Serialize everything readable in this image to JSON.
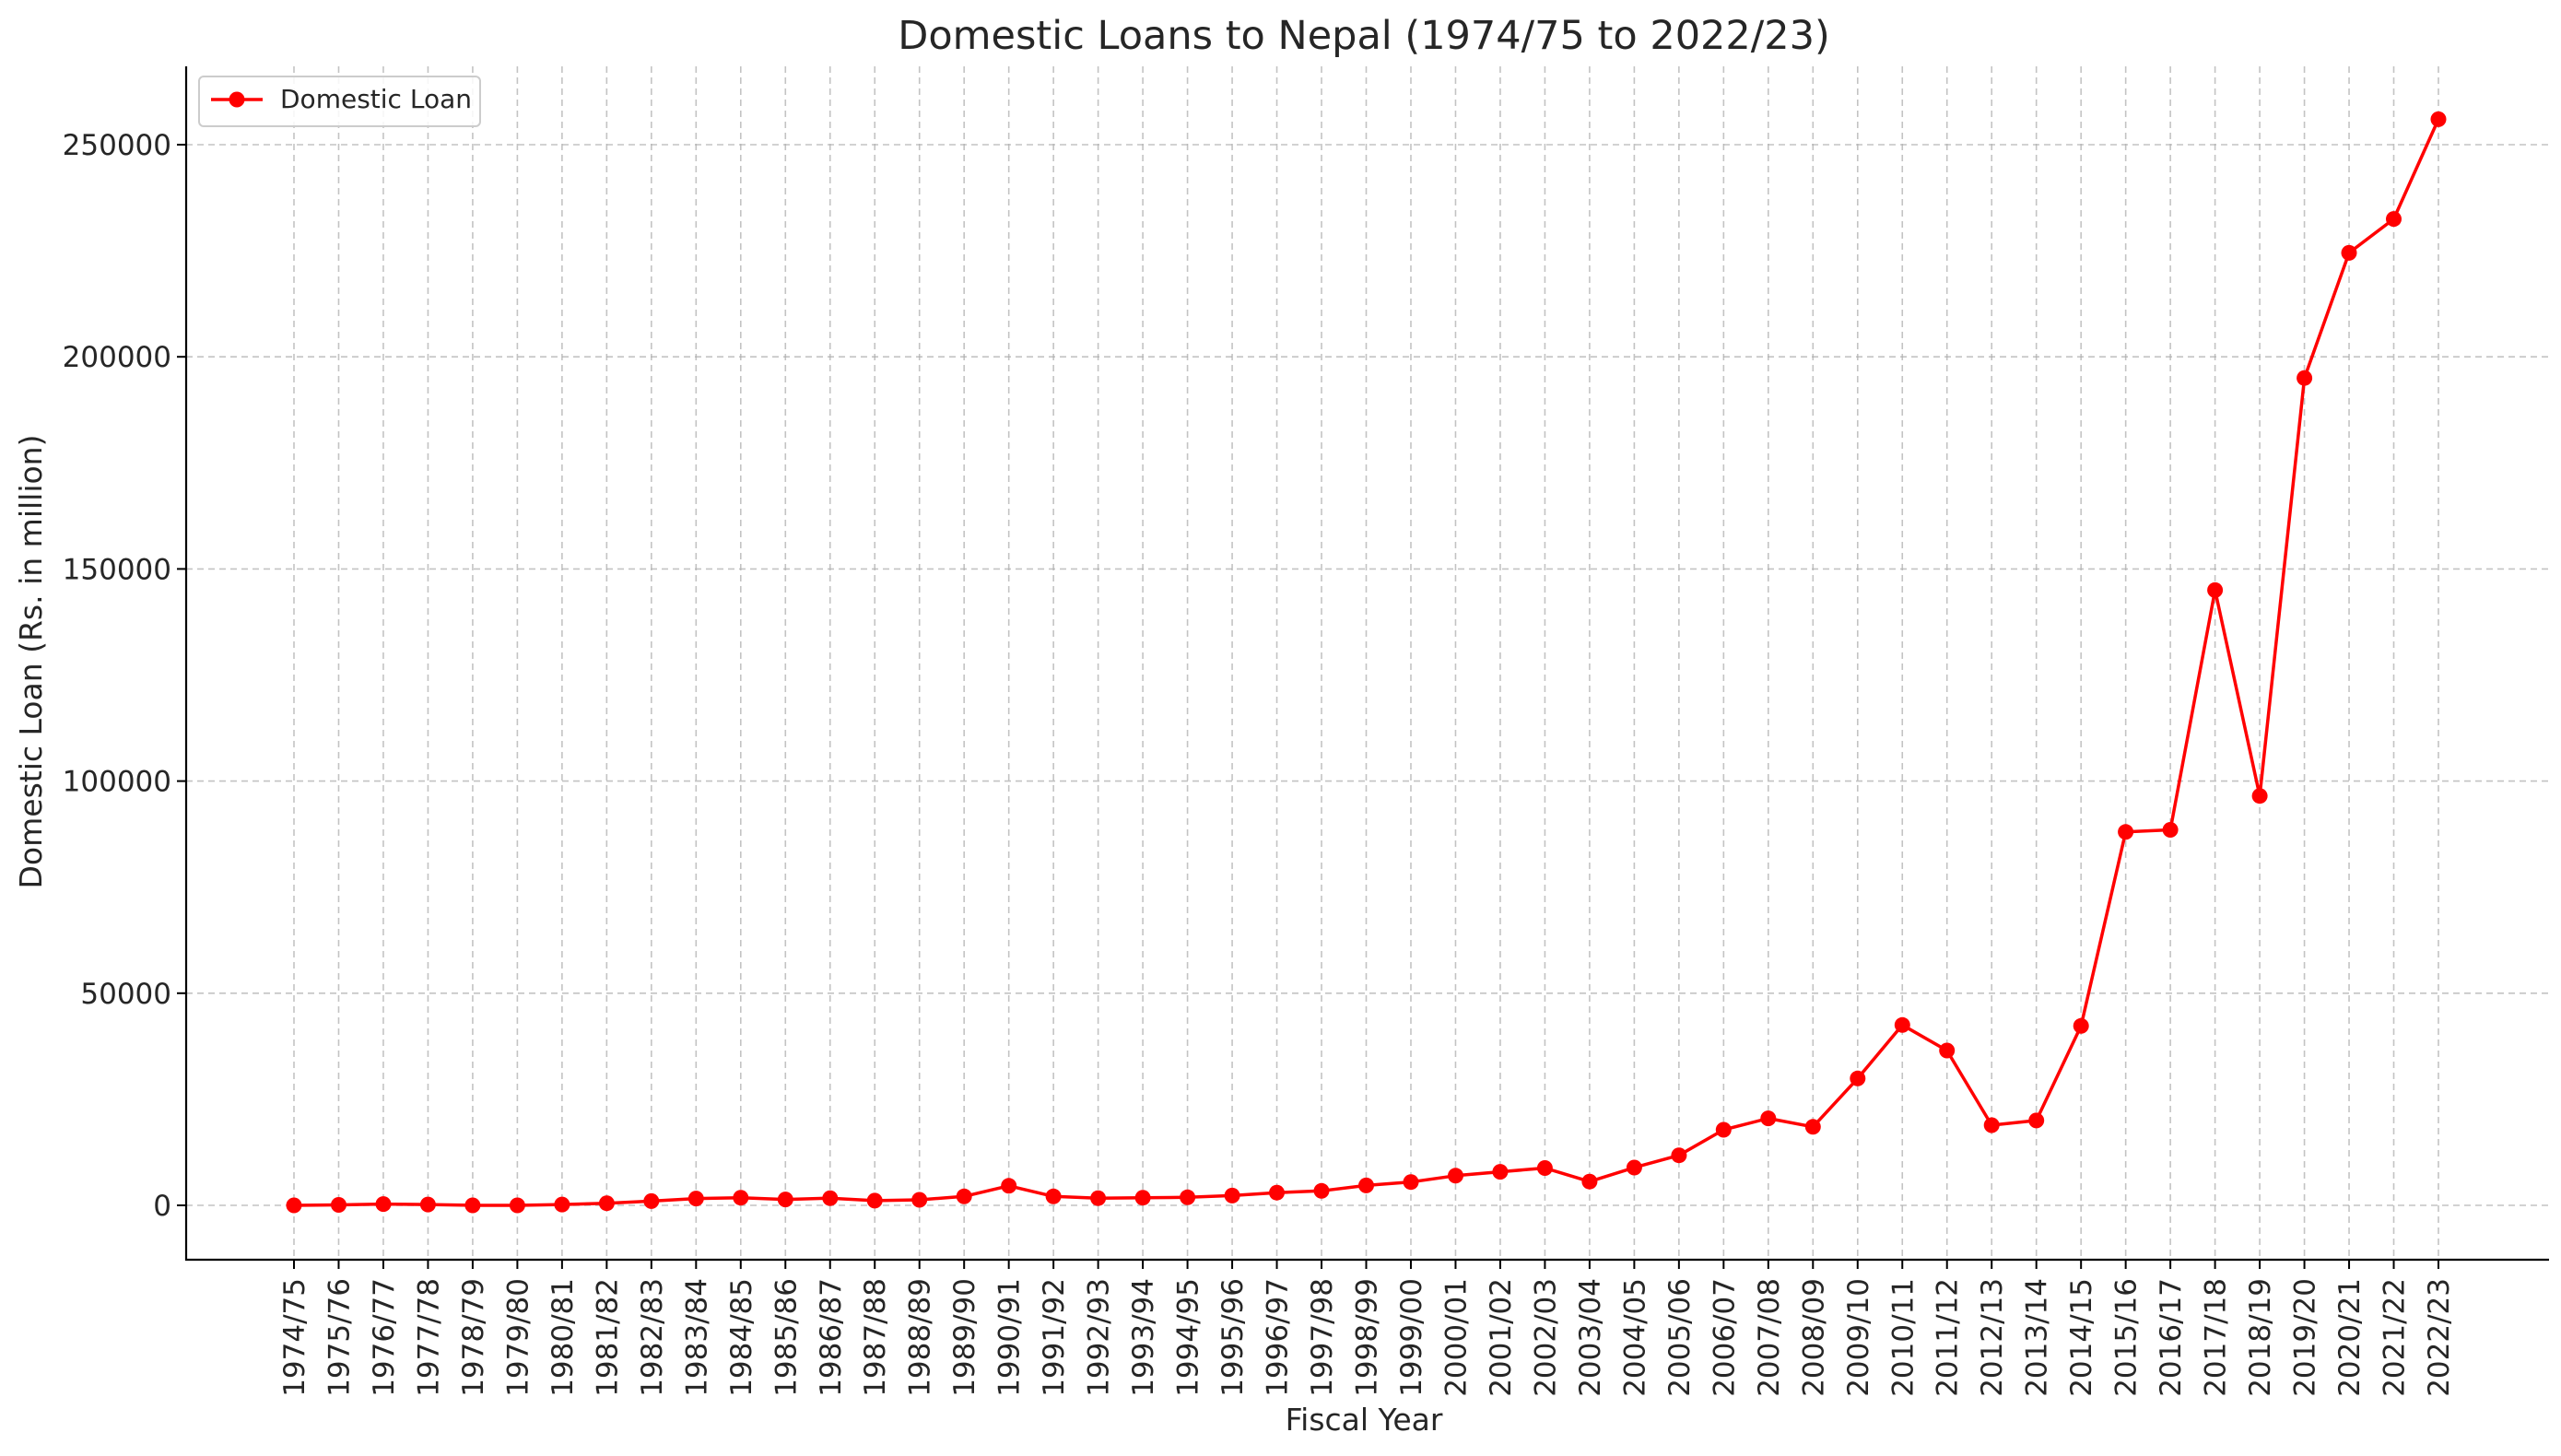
{
  "chart_data": {
    "type": "line",
    "title": "Domestic Loans to Nepal (1974/75 to 2022/23)",
    "xlabel": "Fiscal Year",
    "ylabel": "Domestic Loan (Rs. in million)",
    "ylim": [
      -12500,
      268000
    ],
    "yticks": [
      0,
      50000,
      100000,
      150000,
      200000,
      250000
    ],
    "grid": true,
    "legend_position": "top-left",
    "categories": [
      "1974/75",
      "1975/76",
      "1976/77",
      "1977/78",
      "1978/79",
      "1979/80",
      "1980/81",
      "1981/82",
      "1982/83",
      "1983/84",
      "1984/85",
      "1985/86",
      "1986/87",
      "1987/88",
      "1988/89",
      "1989/90",
      "1990/91",
      "1991/92",
      "1992/93",
      "1993/94",
      "1994/95",
      "1995/96",
      "1996/97",
      "1997/98",
      "1998/99",
      "1999/00",
      "2000/01",
      "2001/02",
      "2002/03",
      "2003/04",
      "2004/05",
      "2005/06",
      "2006/07",
      "2007/08",
      "2008/09",
      "2009/10",
      "2010/11",
      "2011/12",
      "2012/13",
      "2013/14",
      "2014/15",
      "2015/16",
      "2016/17",
      "2017/18",
      "2018/19",
      "2019/20",
      "2020/21",
      "2021/22",
      "2022/23"
    ],
    "series": [
      {
        "name": "Domestic Loan",
        "color": "#ff0000",
        "marker": "circle",
        "values": [
          0,
          100,
          300,
          200,
          0,
          0,
          200,
          500,
          1000,
          1600,
          1800,
          1400,
          1700,
          1100,
          1300,
          2100,
          4600,
          2100,
          1700,
          1800,
          1900,
          2300,
          3000,
          3400,
          4700,
          5500,
          7000,
          7900,
          8800,
          5600,
          8900,
          11800,
          17800,
          20500,
          18500,
          29900,
          42500,
          36500,
          18900,
          20000,
          42300,
          88000,
          88500,
          145000,
          96500,
          195000,
          224500,
          232500,
          256000
        ]
      }
    ]
  }
}
